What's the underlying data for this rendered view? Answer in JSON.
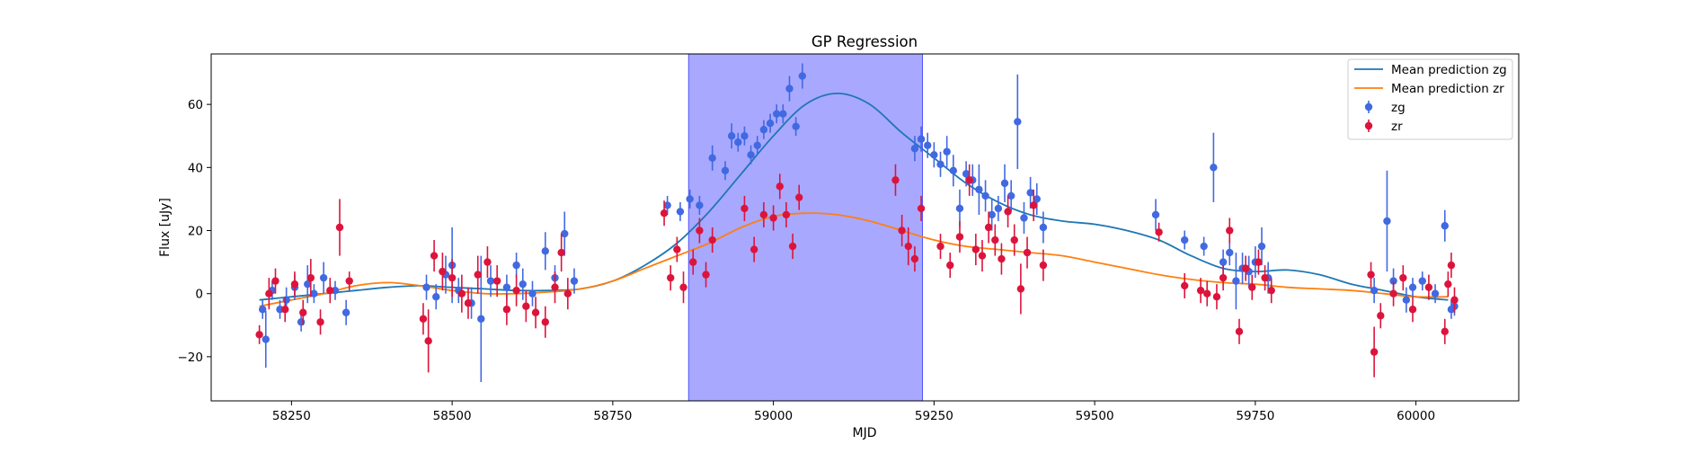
{
  "chart_data": {
    "type": "scatter",
    "title": "GP Regression",
    "xlabel": "MJD",
    "ylabel": "Flux [uJy]",
    "xlim": [
      58125,
      60160
    ],
    "ylim": [
      -34,
      76
    ],
    "xticks": [
      58250,
      58500,
      58750,
      59000,
      59250,
      59500,
      59750,
      60000
    ],
    "yticks": [
      -20,
      0,
      20,
      40,
      60
    ],
    "xtick_labels": [
      "58250",
      "58500",
      "58750",
      "59000",
      "59250",
      "59500",
      "59750",
      "60000"
    ],
    "ytick_labels": [
      "−20",
      "0",
      "20",
      "40",
      "60"
    ],
    "grid": false,
    "legend_position": "top-right",
    "highlight_span": {
      "x_start": 58868,
      "x_end": 59232,
      "color": "#0000ff",
      "alpha": 0.34
    },
    "series": [
      {
        "name": "Mean prediction zg",
        "kind": "line",
        "color": "#1f77b4",
        "x": [
          58200,
          58250,
          58300,
          58350,
          58400,
          58450,
          58500,
          58550,
          58600,
          58650,
          58700,
          58750,
          58800,
          58850,
          58900,
          58950,
          59000,
          59050,
          59100,
          59150,
          59200,
          59250,
          59300,
          59350,
          59400,
          59450,
          59500,
          59550,
          59600,
          59650,
          59700,
          59750,
          59800,
          59850,
          59900,
          59950,
          60000,
          60050
        ],
        "y": [
          -2,
          -1,
          0,
          1,
          2,
          2.5,
          2,
          1.5,
          1,
          1,
          1.5,
          4,
          9,
          16,
          26,
          38,
          50,
          60,
          63.5,
          60,
          51,
          43,
          35,
          29,
          25,
          23,
          22,
          20,
          17,
          12,
          8,
          7,
          7.5,
          6,
          3,
          1,
          -1,
          -2
        ]
      },
      {
        "name": "Mean prediction zr",
        "kind": "line",
        "color": "#ff7f0e",
        "x": [
          58200,
          58250,
          58300,
          58350,
          58400,
          58450,
          58500,
          58550,
          58600,
          58650,
          58700,
          58750,
          58800,
          58850,
          58900,
          58950,
          59000,
          59050,
          59100,
          59150,
          59200,
          59250,
          59300,
          59350,
          59400,
          59450,
          59500,
          59550,
          59600,
          59650,
          59700,
          59750,
          59800,
          59850,
          59900,
          59950,
          60000,
          60050
        ],
        "y": [
          -4,
          -2,
          0,
          2.5,
          3.5,
          2.5,
          1,
          0,
          0,
          0.5,
          1.5,
          4,
          8,
          12,
          16,
          21,
          24.5,
          25.5,
          25,
          23,
          20,
          17,
          15,
          14,
          13,
          12,
          10,
          8,
          6,
          4.5,
          3.5,
          3,
          2,
          1.5,
          1,
          0,
          -1,
          -1
        ]
      },
      {
        "name": "zg",
        "kind": "errorbar",
        "color": "#4169e1",
        "x": [
          58205,
          58210,
          58220,
          58232,
          58242,
          58255,
          58265,
          58275,
          58285,
          58300,
          58318,
          58335,
          58460,
          58475,
          58490,
          58500,
          58510,
          58530,
          58545,
          58560,
          58585,
          58600,
          58610,
          58625,
          58645,
          58660,
          58675,
          58690,
          58835,
          58855,
          58870,
          58885,
          58905,
          58925,
          58935,
          58945,
          58955,
          58965,
          58975,
          58985,
          58995,
          59005,
          59015,
          59025,
          59035,
          59045,
          59220,
          59230,
          59240,
          59250,
          59260,
          59270,
          59280,
          59290,
          59300,
          59310,
          59320,
          59330,
          59340,
          59350,
          59360,
          59370,
          59380,
          59390,
          59400,
          59410,
          59420,
          59595,
          59640,
          59670,
          59685,
          59700,
          59710,
          59720,
          59730,
          59740,
          59750,
          59760,
          59770,
          59935,
          59955,
          59965,
          59985,
          59995,
          60010,
          60030,
          60045,
          60055,
          60060
        ],
        "y": [
          -5,
          -14.5,
          1,
          -5,
          -2,
          2,
          -9,
          3,
          0,
          5,
          1,
          -6,
          2,
          -1,
          6,
          9,
          1,
          -3,
          -8,
          4,
          2,
          9,
          3,
          0,
          13.5,
          5,
          19,
          4,
          28,
          26,
          30,
          28,
          43,
          39,
          50,
          48,
          50,
          44,
          47,
          52,
          54,
          57,
          57,
          65,
          53,
          69,
          46,
          49,
          47,
          44,
          41,
          45,
          39,
          27,
          38,
          36,
          33,
          31,
          25,
          27,
          35,
          31,
          54.5,
          24,
          32,
          30,
          21,
          25,
          17,
          15,
          40,
          10,
          13,
          4,
          8,
          7,
          10,
          15,
          5,
          1,
          23,
          4,
          -2,
          2,
          4,
          0,
          21.5,
          -5,
          -4
        ],
        "err": [
          3,
          9,
          3,
          3,
          4,
          4,
          3,
          6,
          3,
          5,
          3,
          4,
          4,
          4,
          6,
          12,
          4,
          5,
          20,
          5,
          4,
          4,
          5,
          4,
          6,
          4,
          7,
          4,
          3,
          3,
          3,
          3,
          4,
          3,
          4,
          3,
          3,
          3,
          3,
          3,
          3,
          3,
          3,
          4,
          3,
          4,
          4,
          4,
          4,
          4,
          4,
          5,
          5,
          6,
          4,
          5,
          8,
          5,
          5,
          4,
          6,
          5,
          15,
          5,
          5,
          5,
          5,
          5,
          3,
          3,
          11,
          4,
          4,
          9,
          5,
          5,
          5,
          6,
          5,
          4,
          16,
          4,
          4,
          3,
          3,
          3,
          5,
          3,
          3
        ]
      },
      {
        "name": "zr",
        "kind": "errorbar",
        "color": "#dc143c",
        "x": [
          58200,
          58215,
          58225,
          58240,
          58255,
          58268,
          58280,
          58295,
          58310,
          58325,
          58340,
          58455,
          58463,
          58472,
          58485,
          58500,
          58515,
          58525,
          58540,
          58555,
          58570,
          58585,
          58600,
          58615,
          58630,
          58645,
          58660,
          58670,
          58680,
          58830,
          58840,
          58850,
          58860,
          58875,
          58885,
          58895,
          58905,
          58955,
          58970,
          58985,
          59000,
          59010,
          59020,
          59030,
          59040,
          59190,
          59200,
          59210,
          59220,
          59230,
          59260,
          59275,
          59290,
          59305,
          59315,
          59325,
          59335,
          59345,
          59355,
          59365,
          59375,
          59385,
          59395,
          59405,
          59420,
          59600,
          59640,
          59665,
          59675,
          59690,
          59700,
          59710,
          59725,
          59735,
          59745,
          59755,
          59765,
          59775,
          59930,
          59935,
          59945,
          59965,
          59980,
          59995,
          60020,
          60045,
          60050,
          60055,
          60060
        ],
        "y": [
          -13,
          0,
          4,
          -5,
          3,
          -6,
          5,
          -9,
          1,
          21,
          4,
          -8,
          -15,
          12,
          7,
          5,
          0,
          -3,
          6,
          10,
          4,
          -5,
          1,
          -4,
          -6,
          -9,
          2,
          13,
          0,
          25.5,
          5,
          14,
          2,
          10,
          20,
          6,
          17,
          27,
          14,
          25,
          24,
          34,
          25,
          15,
          30.5,
          36,
          20,
          15,
          11,
          27,
          15,
          9,
          18,
          36,
          14,
          12,
          21,
          17,
          11,
          26,
          17,
          1.5,
          13,
          28,
          9,
          19.5,
          2.5,
          1,
          0,
          -1,
          5,
          20,
          -12,
          8,
          2,
          10,
          5,
          1,
          6,
          -18.5,
          -7,
          0,
          5,
          -5,
          2,
          -12,
          3,
          9,
          -2
        ],
        "err": [
          3,
          5,
          4,
          4,
          4,
          4,
          6,
          4,
          4,
          9,
          3,
          5,
          10,
          5,
          6,
          6,
          6,
          5,
          6,
          5,
          5,
          5,
          5,
          5,
          5,
          5,
          5,
          6,
          5,
          4,
          4,
          4,
          5,
          4,
          4,
          4,
          4,
          4,
          4,
          4,
          4,
          4,
          4,
          4,
          4,
          5,
          5,
          6,
          4,
          4,
          4,
          4,
          5,
          5,
          5,
          5,
          5,
          5,
          5,
          5,
          5,
          8,
          5,
          5,
          5,
          3,
          4,
          4,
          4,
          4,
          4,
          4,
          4,
          4,
          4,
          4,
          4,
          4,
          4,
          8,
          4,
          4,
          4,
          4,
          4,
          4,
          4,
          4,
          4
        ]
      }
    ]
  }
}
